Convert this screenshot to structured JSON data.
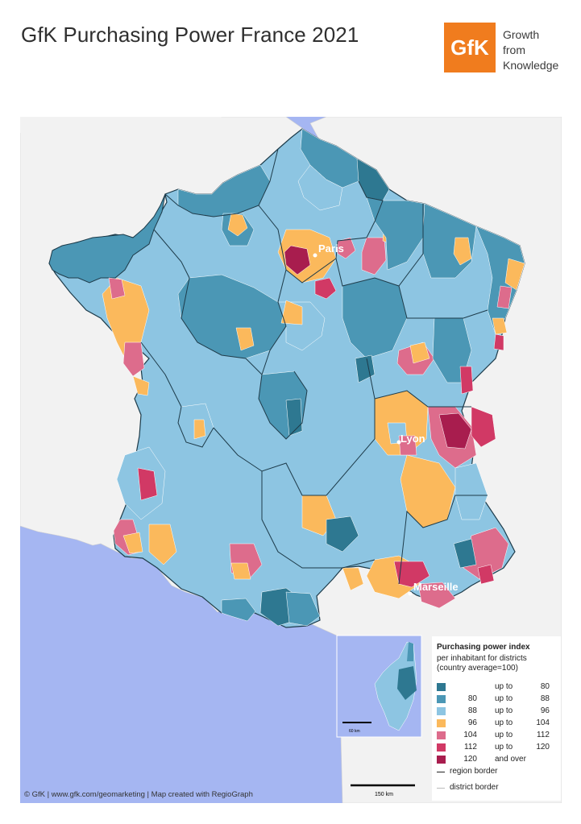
{
  "header": {
    "title": "GfK Purchasing Power France 2021",
    "logo_text": "GfK",
    "tagline": [
      "Growth",
      "from",
      "Knowledge"
    ]
  },
  "map": {
    "cities": [
      "Paris",
      "Lyon",
      "Marseille"
    ],
    "inset_scale_label": "60 km",
    "main_scale_label": "150 km",
    "colors": {
      "sea": "#a5b6f2",
      "land_outside": "#f2f2f2",
      "class_1": "#2e7891",
      "class_2": "#4b97b5",
      "class_3": "#8dc5e2",
      "class_4": "#fbb95c",
      "class_5": "#dd6c8c",
      "class_6": "#d13965",
      "class_7": "#a81d4e"
    }
  },
  "legend": {
    "title": "Purchasing power index",
    "subtitle_1": "per inhabitant for districts",
    "subtitle_2": "(country average=100)",
    "rows": [
      {
        "from": "",
        "sep": "up to",
        "to": "80",
        "color": "#2e7891"
      },
      {
        "from": "80",
        "sep": "up to",
        "to": "88",
        "color": "#4b97b5"
      },
      {
        "from": "88",
        "sep": "up to",
        "to": "96",
        "color": "#8dc5e2"
      },
      {
        "from": "96",
        "sep": "up to",
        "to": "104",
        "color": "#fbb95c"
      },
      {
        "from": "104",
        "sep": "up to",
        "to": "112",
        "color": "#dd6c8c"
      },
      {
        "from": "112",
        "sep": "up to",
        "to": "120",
        "color": "#d13965"
      },
      {
        "from": "120",
        "sep": "and over",
        "to": "",
        "color": "#a81d4e"
      }
    ],
    "region_border": "region border",
    "district_border": "district border"
  },
  "footer": {
    "credits": "© GfK | www.gfk.com/geomarketing | Map created with RegioGraph"
  }
}
